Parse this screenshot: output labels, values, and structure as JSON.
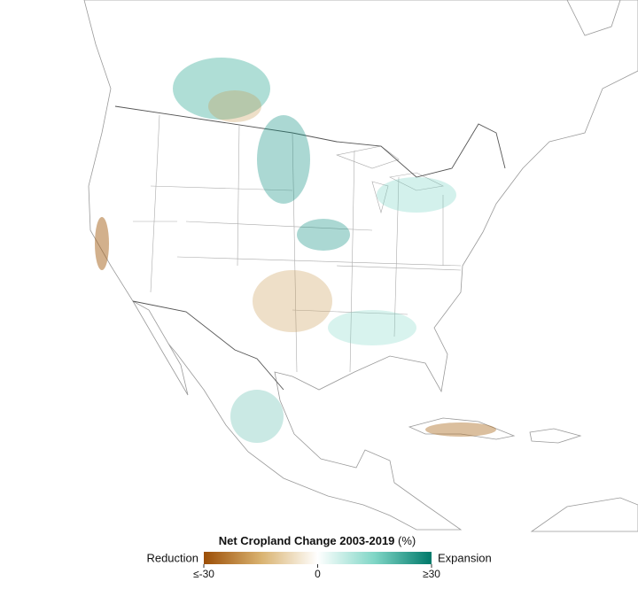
{
  "legend": {
    "title": "Net Cropland Change 2003-2019",
    "unit": "(%)",
    "low_label": "Reduction",
    "high_label": "Expansion",
    "range": [
      -30,
      30
    ],
    "ticks": [
      {
        "value": -30,
        "label": "≤-30"
      },
      0,
      {
        "value": 30,
        "label": "≥30"
      }
    ],
    "colors": [
      "#9c4e06",
      "#d9b26f",
      "#ffffff",
      "#7fd6c6",
      "#00796a"
    ]
  }
}
